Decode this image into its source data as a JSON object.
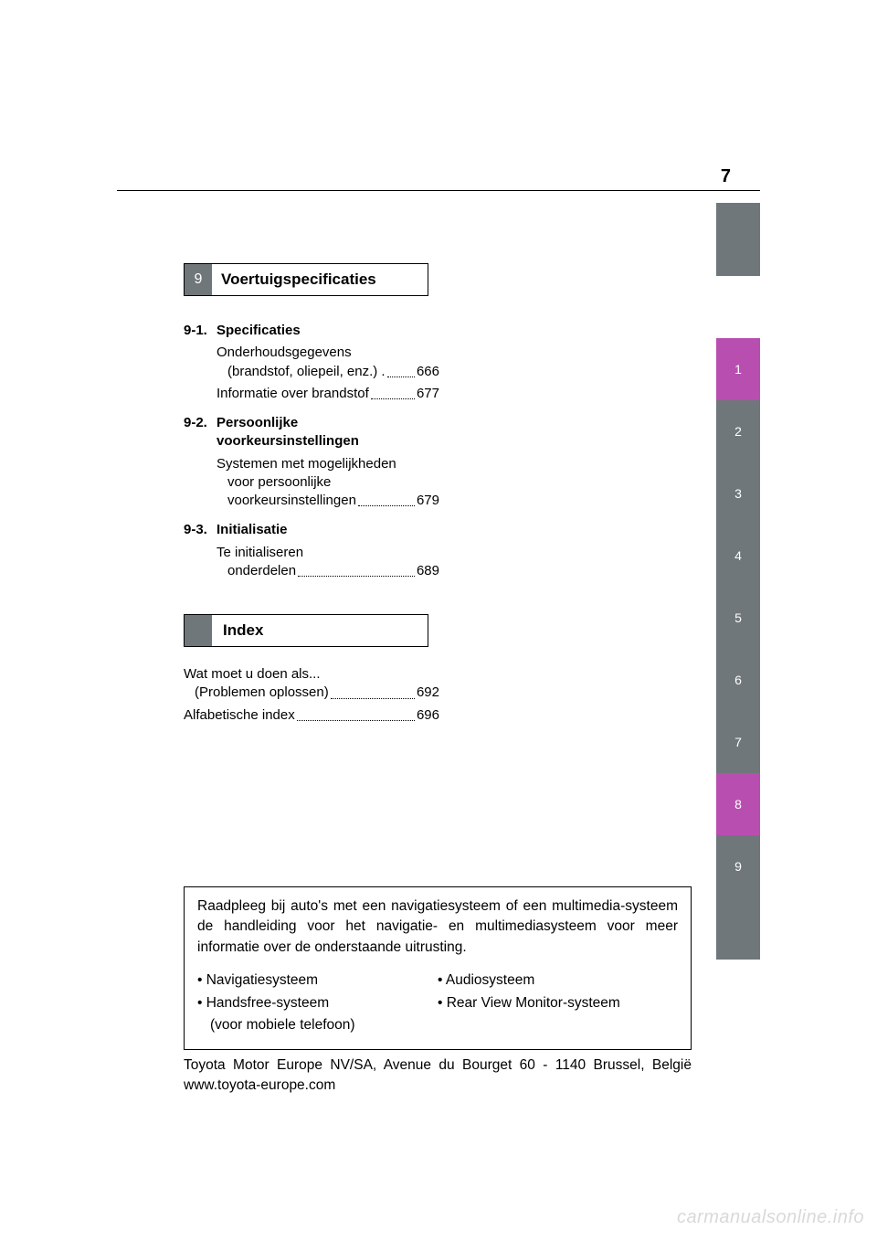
{
  "page_number": "7",
  "colors": {
    "tab_grey": "#6f777a",
    "tab_magenta": "#b84fb0",
    "text": "#000000",
    "watermark": "#d9d9d9",
    "background": "#ffffff"
  },
  "section_header": {
    "number": "9",
    "title": "Voertuigspecificaties"
  },
  "toc": {
    "groups": [
      {
        "num": "9-1.",
        "heading": "Specificaties",
        "entries": [
          {
            "label_lines": [
              "Onderhoudsgegevens",
              "(brandstof, oliepeil, enz.) ."
            ],
            "page": "666"
          },
          {
            "label_lines": [
              "Informatie over brandstof"
            ],
            "page": "677",
            "dots_short": true
          }
        ]
      },
      {
        "num": "9-2.",
        "heading_lines": [
          "Persoonlijke",
          "voorkeursinstellingen"
        ],
        "entries": [
          {
            "label_lines": [
              "Systemen met mogelijkheden",
              "voor persoonlijke",
              "voorkeursinstellingen"
            ],
            "page": "679"
          }
        ]
      },
      {
        "num": "9-3.",
        "heading": "Initialisatie",
        "entries": [
          {
            "label_lines": [
              "Te initialiseren",
              "onderdelen"
            ],
            "page": "689"
          }
        ]
      }
    ]
  },
  "index_header": {
    "title": "Index"
  },
  "index_entries": [
    {
      "label_lines": [
        "Wat moet u doen als...",
        "(Problemen oplossen)"
      ],
      "page": "692"
    },
    {
      "label_lines": [
        "Alfabetische index"
      ],
      "page": "696"
    }
  ],
  "side_tabs": [
    {
      "n": "1",
      "style": "magenta"
    },
    {
      "n": "2",
      "style": "grey"
    },
    {
      "n": "3",
      "style": "grey"
    },
    {
      "n": "4",
      "style": "grey"
    },
    {
      "n": "5",
      "style": "grey"
    },
    {
      "n": "6",
      "style": "grey"
    },
    {
      "n": "7",
      "style": "grey"
    },
    {
      "n": "8",
      "style": "magenta"
    },
    {
      "n": "9",
      "style": "grey"
    },
    {
      "n": "",
      "style": "blank"
    }
  ],
  "info_box": {
    "lead": "Raadpleeg bij auto's met een navigatiesysteem of een multimedia-systeem de handleiding voor het navigatie- en multimediasysteem voor meer informatie over de onderstaande uitrusting.",
    "col1": [
      "• Navigatiesysteem",
      "• Handsfree-systeem",
      "(voor mobiele telefoon)"
    ],
    "col2": [
      "• Audiosysteem",
      "• Rear View Monitor-systeem"
    ]
  },
  "footer": "Toyota Motor Europe NV/SA, Avenue du Bourget 60 - 1140 Brussel, België www.toyota-europe.com",
  "watermark": "carmanualsonline.info"
}
